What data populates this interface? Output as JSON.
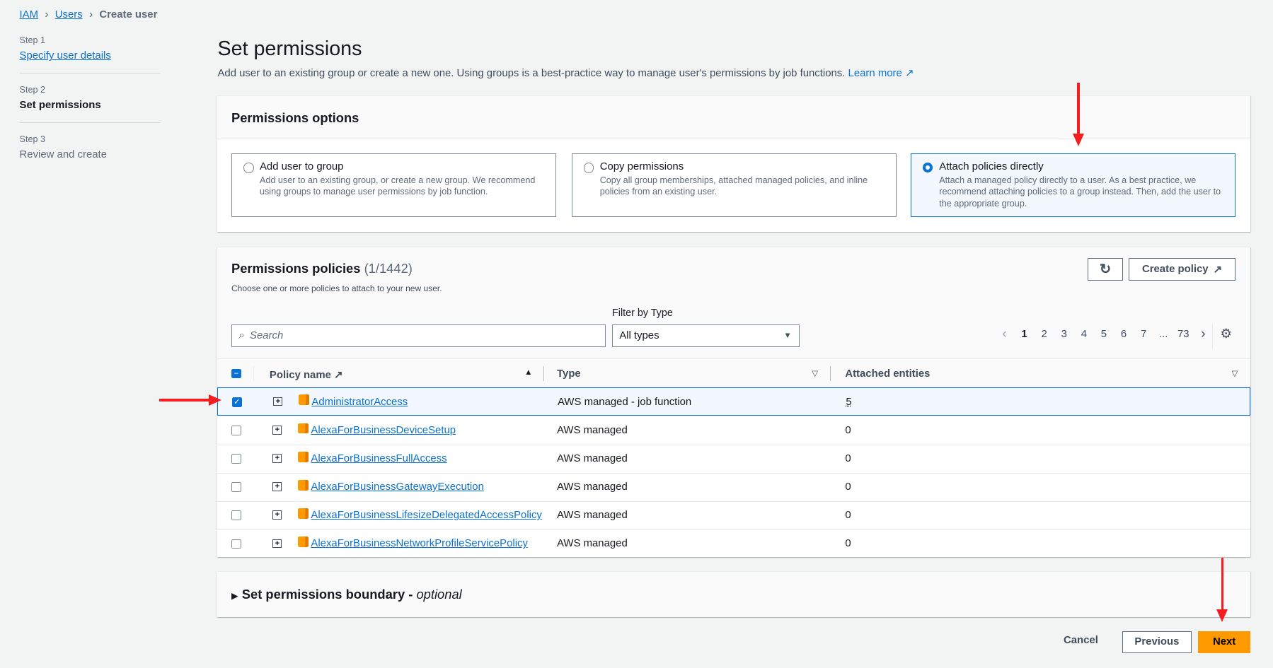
{
  "breadcrumb": [
    "IAM",
    "Users",
    "Create user"
  ],
  "steps": [
    {
      "step": "Step 1",
      "label": "Specify user details",
      "state": "link"
    },
    {
      "step": "Step 2",
      "label": "Set permissions",
      "state": "current"
    },
    {
      "step": "Step 3",
      "label": "Review and create",
      "state": "upcoming"
    }
  ],
  "page": {
    "title": "Set permissions",
    "description": "Add user to an existing group or create a new one. Using groups is a best-practice way to manage user's permissions by job functions.",
    "learn_more": "Learn more"
  },
  "options": {
    "title": "Permissions options",
    "items": [
      {
        "label": "Add user to group",
        "desc": "Add user to an existing group, or create a new group. We recommend using groups to manage user permissions by job function.",
        "selected": false
      },
      {
        "label": "Copy permissions",
        "desc": "Copy all group memberships, attached managed policies, and inline policies from an existing user.",
        "selected": false
      },
      {
        "label": "Attach policies directly",
        "desc": "Attach a managed policy directly to a user. As a best practice, we recommend attaching policies to a group instead. Then, add the user to the appropriate group.",
        "selected": true
      }
    ]
  },
  "policies": {
    "title": "Permissions policies",
    "count": "(1/1442)",
    "subtitle": "Choose one or more policies to attach to your new user.",
    "create_policy": "Create policy",
    "filter_label": "Filter by Type",
    "search_placeholder": "Search",
    "filter_value": "All types",
    "pages": [
      "1",
      "2",
      "3",
      "4",
      "5",
      "6",
      "7",
      "...",
      "73"
    ],
    "current_page": "1",
    "columns": [
      "Policy name",
      "Type",
      "Attached entities"
    ],
    "rows": [
      {
        "name": "AdministratorAccess",
        "type": "AWS managed - job function",
        "entities": "5",
        "checked": true
      },
      {
        "name": "AlexaForBusinessDeviceSetup",
        "type": "AWS managed",
        "entities": "0",
        "checked": false
      },
      {
        "name": "AlexaForBusinessFullAccess",
        "type": "AWS managed",
        "entities": "0",
        "checked": false
      },
      {
        "name": "AlexaForBusinessGatewayExecution",
        "type": "AWS managed",
        "entities": "0",
        "checked": false
      },
      {
        "name": "AlexaForBusinessLifesizeDelegatedAccessPolicy",
        "type": "AWS managed",
        "entities": "0",
        "checked": false
      },
      {
        "name": "AlexaForBusinessNetworkProfileServicePolicy",
        "type": "AWS managed",
        "entities": "0",
        "checked": false
      }
    ]
  },
  "boundary": {
    "title": "Set permissions boundary - ",
    "optional": "optional"
  },
  "footer": {
    "cancel": "Cancel",
    "previous": "Previous",
    "next": "Next"
  },
  "colors": {
    "accent": "#0972d3",
    "primary_button": "#ff9900",
    "annotation_arrow": "#f41e1e"
  }
}
